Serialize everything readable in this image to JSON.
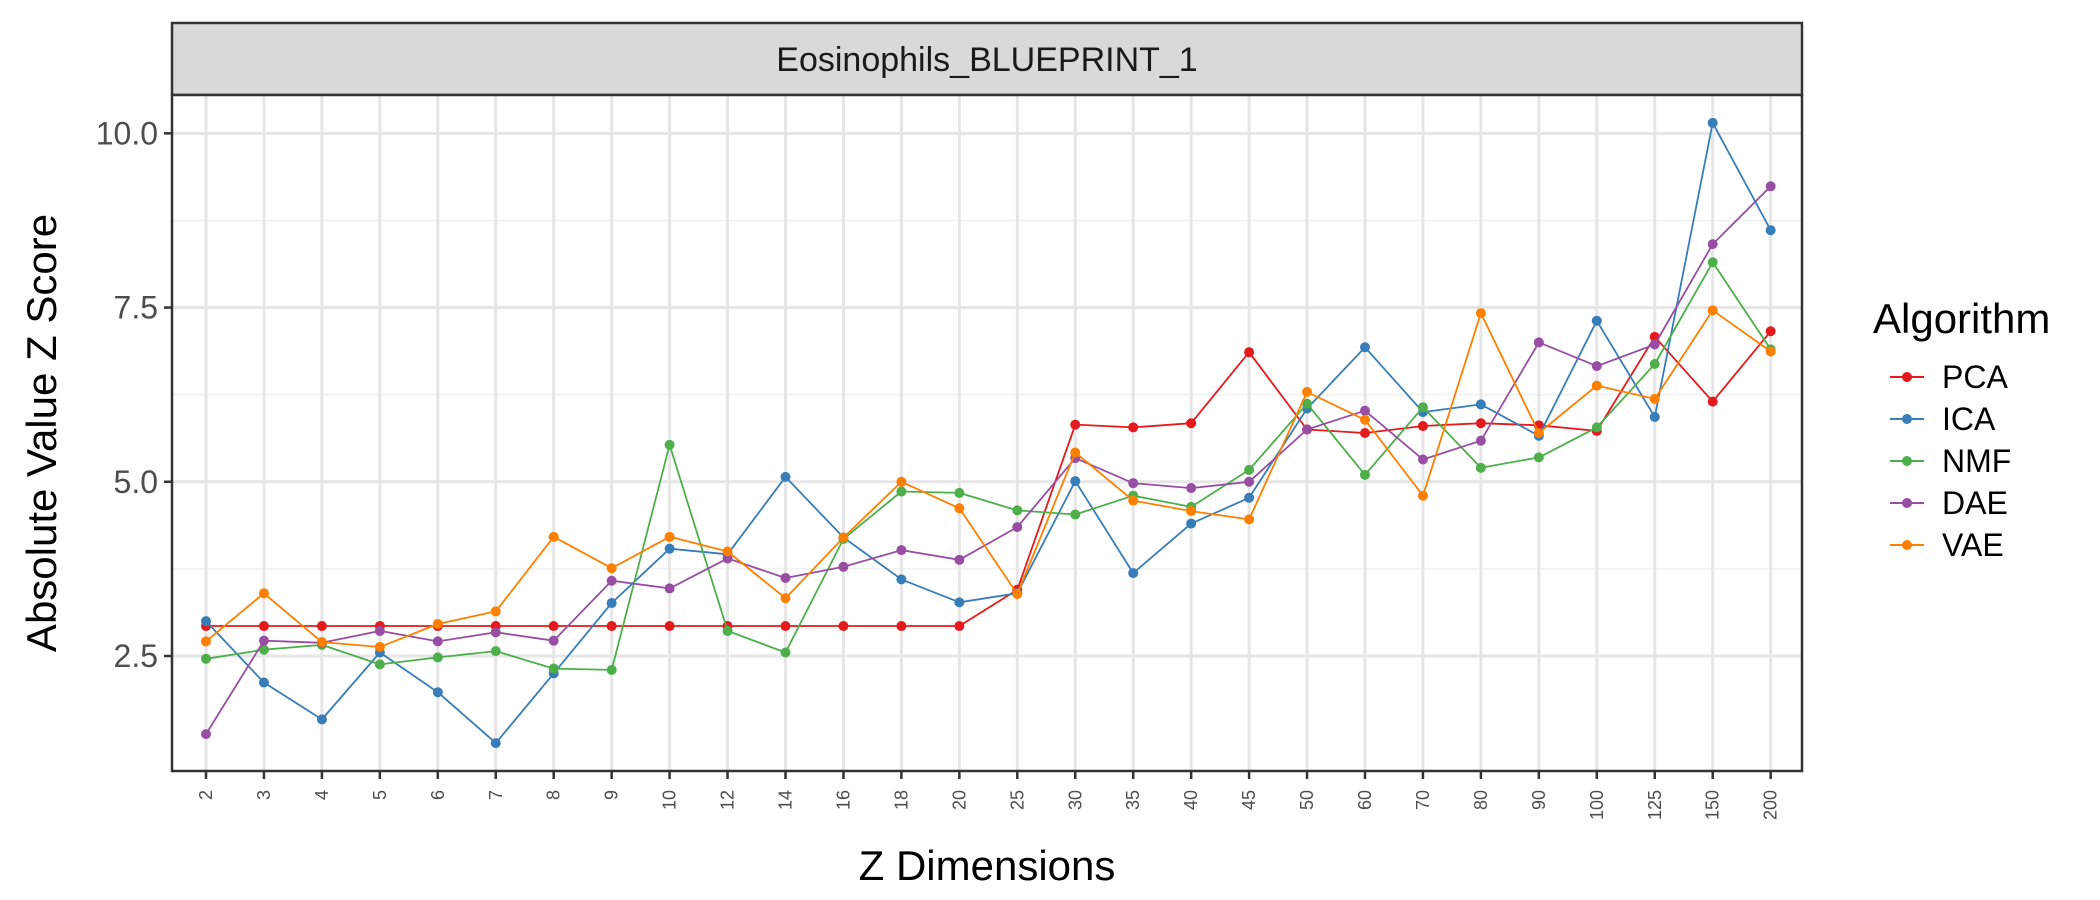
{
  "chart_data": {
    "type": "line",
    "facet_title": "Eosinophils_BLUEPRINT_1",
    "xlabel": "Z Dimensions",
    "ylabel": "Absolute Value Z Score",
    "categories": [
      "2",
      "3",
      "4",
      "5",
      "6",
      "7",
      "8",
      "9",
      "10",
      "12",
      "14",
      "16",
      "18",
      "20",
      "25",
      "30",
      "35",
      "40",
      "45",
      "50",
      "60",
      "70",
      "80",
      "90",
      "100",
      "125",
      "150",
      "200"
    ],
    "ylim": [
      0.85,
      10.55
    ],
    "yticks": [
      2.5,
      5.0,
      7.5,
      10.0
    ],
    "ytick_labels": [
      "2.5",
      "5.0",
      "7.5",
      "10.0"
    ],
    "grid": true,
    "legend": {
      "title": "Algorithm",
      "position": "right"
    },
    "series": [
      {
        "name": "PCA",
        "color": "#E41A1C",
        "values": [
          2.93,
          2.93,
          2.93,
          2.93,
          2.93,
          2.93,
          2.93,
          2.93,
          2.93,
          2.93,
          2.93,
          2.93,
          2.93,
          2.93,
          3.45,
          5.82,
          5.78,
          5.84,
          6.86,
          5.75,
          5.7,
          5.8,
          5.84,
          5.81,
          5.73,
          7.08,
          6.15,
          7.16
        ]
      },
      {
        "name": "ICA",
        "color": "#377EB8",
        "values": [
          3.0,
          2.12,
          1.59,
          2.55,
          1.98,
          1.25,
          2.25,
          3.26,
          4.04,
          3.96,
          5.07,
          4.2,
          3.6,
          3.27,
          3.4,
          5.01,
          3.69,
          4.4,
          4.77,
          6.05,
          6.93,
          6.0,
          6.11,
          5.66,
          7.31,
          5.93,
          10.15,
          8.61
        ]
      },
      {
        "name": "NMF",
        "color": "#4DAF4A",
        "values": [
          2.46,
          2.59,
          2.66,
          2.38,
          2.48,
          2.57,
          2.32,
          2.3,
          5.53,
          2.86,
          2.55,
          4.18,
          4.86,
          4.84,
          4.59,
          4.53,
          4.8,
          4.64,
          5.17,
          6.12,
          5.1,
          6.07,
          5.2,
          5.35,
          5.78,
          6.69,
          8.15,
          6.9
        ]
      },
      {
        "name": "DAE",
        "color": "#984EA3",
        "values": [
          1.38,
          2.72,
          2.69,
          2.86,
          2.71,
          2.84,
          2.72,
          3.58,
          3.47,
          3.9,
          3.62,
          3.78,
          4.02,
          3.88,
          4.35,
          5.34,
          4.98,
          4.91,
          5.0,
          5.75,
          6.02,
          5.32,
          5.59,
          7.0,
          6.66,
          6.97,
          8.41,
          9.24
        ]
      },
      {
        "name": "VAE",
        "color": "#FF7F00",
        "values": [
          2.71,
          3.4,
          2.7,
          2.63,
          2.96,
          3.14,
          4.21,
          3.76,
          4.21,
          4.0,
          3.33,
          4.2,
          5.0,
          4.62,
          3.39,
          5.42,
          4.73,
          4.58,
          4.46,
          6.29,
          5.89,
          4.8,
          7.42,
          5.7,
          6.38,
          6.19,
          7.46,
          6.87
        ]
      }
    ]
  }
}
